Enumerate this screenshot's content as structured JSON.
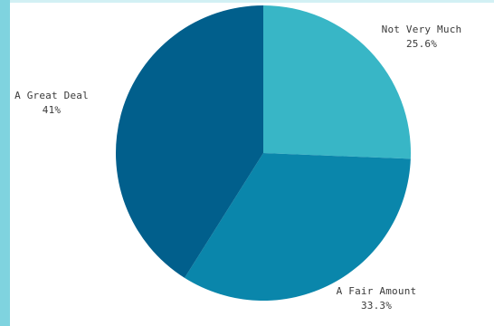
{
  "theme": {
    "side_bar_color": "#7fd3df",
    "slice_colors": [
      "#38b6c6",
      "#0a86ab",
      "#015f8c"
    ]
  },
  "chart_data": {
    "type": "pie",
    "title": "",
    "start_angle_deg": 0,
    "direction": "clockwise",
    "slices": [
      {
        "label": "Not Very Much",
        "value": 25.6,
        "display": "25.6%"
      },
      {
        "label": "A Fair Amount",
        "value": 33.3,
        "display": "33.3%"
      },
      {
        "label": "A Great Deal",
        "value": 41,
        "display": "41%"
      }
    ]
  }
}
